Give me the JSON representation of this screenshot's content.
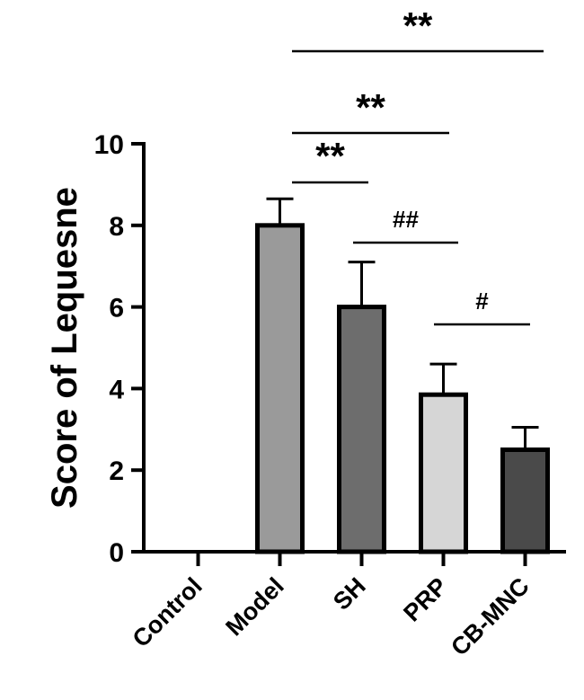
{
  "chart_data": {
    "type": "bar",
    "ylabel": "Score of  Lequesne",
    "xlabel": "",
    "ylim": [
      0,
      10
    ],
    "yticks": [
      0,
      2,
      4,
      6,
      8,
      10
    ],
    "categories": [
      "Control",
      "Model",
      "SH",
      "PRP",
      "CB-MNC"
    ],
    "values": [
      0,
      8.0,
      6.0,
      3.85,
      2.5
    ],
    "errors": [
      0,
      0.65,
      1.1,
      0.75,
      0.55
    ],
    "colors": [
      "#ffffff",
      "#9a9a9a",
      "#6d6d6d",
      "#d6d6d6",
      "#4a4a4a"
    ],
    "significance": [
      {
        "from": "Model",
        "to": "CB-MNC",
        "label": "**"
      },
      {
        "from": "Model",
        "to": "PRP",
        "label": "**"
      },
      {
        "from": "Model",
        "to": "SH",
        "label": "**"
      },
      {
        "from": "SH",
        "to": "PRP",
        "label": "##"
      },
      {
        "from": "PRP",
        "to": "CB-MNC",
        "label": "#"
      }
    ]
  }
}
